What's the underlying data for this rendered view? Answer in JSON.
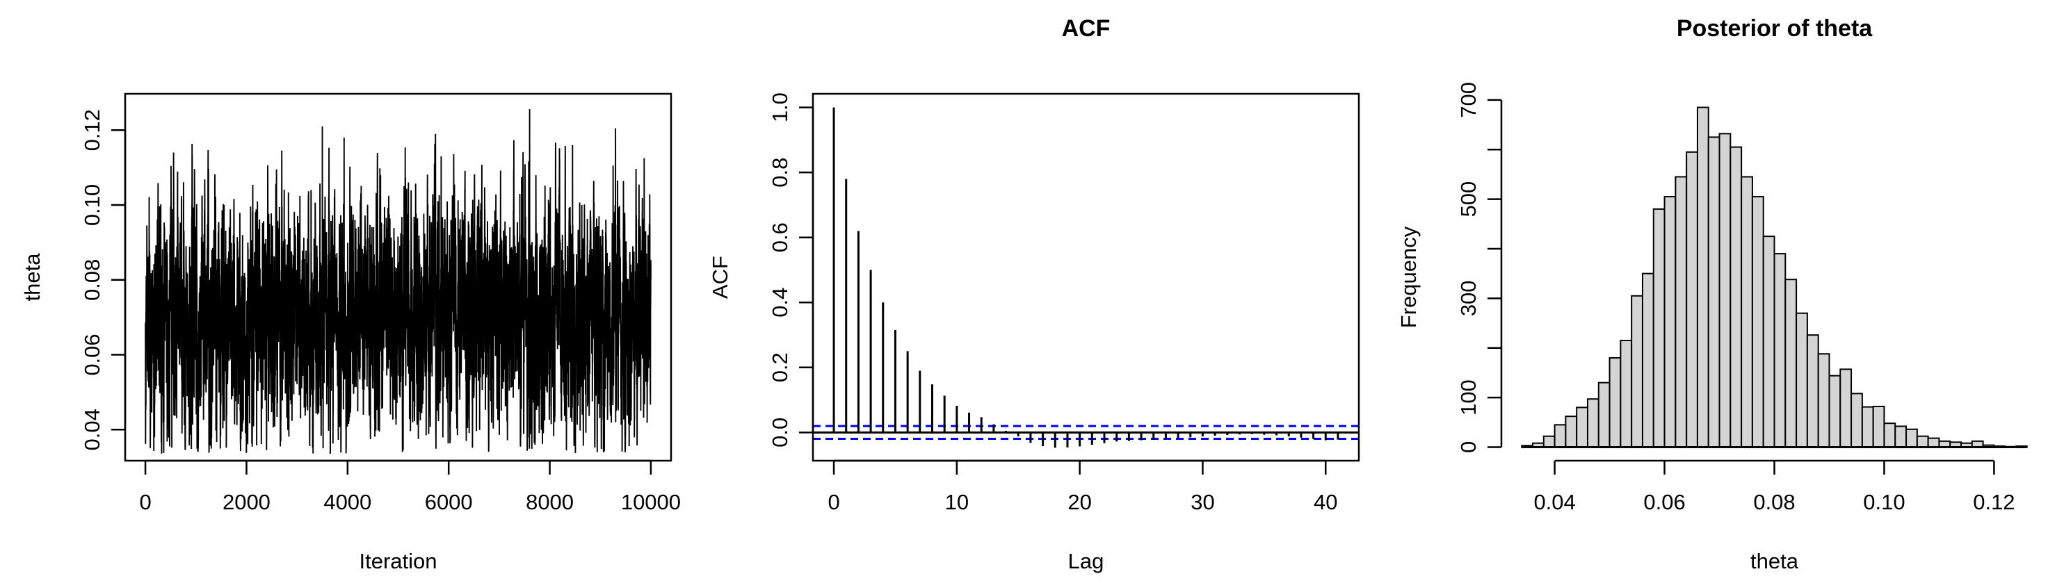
{
  "figure": {
    "background": "#ffffff",
    "foreground": "#000000",
    "accent_blue": "#0000ff",
    "hist_fill": "#d4d4d4"
  },
  "chart_data": [
    {
      "id": "trace",
      "type": "line",
      "title": "",
      "xlabel": "Iteration",
      "ylabel": "theta",
      "xlim": [
        -400,
        10400
      ],
      "ylim": [
        0.0317,
        0.1297
      ],
      "xticks": [
        0,
        2000,
        4000,
        6000,
        8000,
        10000
      ],
      "xtick_labels": [
        "0",
        "2000",
        "4000",
        "6000",
        "8000",
        "10000"
      ],
      "yticks": [
        0.04,
        0.06,
        0.08,
        0.1,
        0.12
      ],
      "ytick_labels": [
        "0.04",
        "0.06",
        "0.08",
        "0.10",
        "0.12"
      ],
      "line_color": "#000000",
      "grid": false,
      "series_summary": {
        "n_iterations": 10000,
        "mean": 0.0705,
        "sd": 0.0145,
        "lag1_autocorr": 0.78,
        "observed_min": 0.035,
        "observed_max": 0.126
      }
    },
    {
      "id": "acf",
      "type": "bar",
      "title": "ACF",
      "xlabel": "Lag",
      "ylabel": "ACF",
      "xlim": [
        -1.7,
        42.7
      ],
      "ylim": [
        -0.087,
        1.042
      ],
      "xticks": [
        0,
        10,
        20,
        30,
        40
      ],
      "xtick_labels": [
        "0",
        "10",
        "20",
        "30",
        "40"
      ],
      "yticks": [
        0.0,
        0.2,
        0.4,
        0.6,
        0.8,
        1.0
      ],
      "ytick_labels": [
        "0.0",
        "0.2",
        "0.4",
        "0.6",
        "0.8",
        "1.0"
      ],
      "grid": false,
      "lags": [
        0,
        1,
        2,
        3,
        4,
        5,
        6,
        7,
        8,
        9,
        10,
        11,
        12,
        13,
        14,
        15,
        16,
        17,
        18,
        19,
        20,
        21,
        22,
        23,
        24,
        25,
        26,
        27,
        28,
        29,
        30,
        31,
        32,
        33,
        34,
        35,
        36,
        37,
        38,
        39,
        40,
        41
      ],
      "values": [
        1.0,
        0.78,
        0.62,
        0.5,
        0.4,
        0.315,
        0.25,
        0.19,
        0.148,
        0.113,
        0.082,
        0.061,
        0.047,
        0.025,
        0.005,
        -0.012,
        -0.032,
        -0.042,
        -0.047,
        -0.046,
        -0.043,
        -0.038,
        -0.033,
        -0.028,
        -0.026,
        -0.024,
        -0.022,
        -0.02,
        -0.017,
        -0.015,
        -0.012,
        -0.01,
        -0.008,
        -0.006,
        -0.005,
        -0.007,
        -0.009,
        -0.012,
        -0.016,
        -0.02,
        -0.024,
        -0.022
      ],
      "conf_band": 0.0196,
      "conf_line_color": "#0000ff",
      "conf_line_style": "dashed",
      "zero_line": true,
      "spike_color": "#000000"
    },
    {
      "id": "posterior-hist",
      "type": "bar",
      "title": "Posterior of theta",
      "xlabel": "theta",
      "ylabel": "Frequency",
      "xlim": [
        0.0303,
        0.1297
      ],
      "ylim": [
        -27.4,
        712.4
      ],
      "bin_start": 0.034,
      "bin_width": 0.002,
      "counts": [
        3,
        8,
        22,
        45,
        62,
        80,
        97,
        130,
        180,
        215,
        305,
        350,
        480,
        505,
        545,
        595,
        685,
        625,
        632,
        605,
        545,
        505,
        425,
        390,
        338,
        270,
        226,
        188,
        144,
        157,
        108,
        81,
        82,
        48,
        42,
        36,
        22,
        18,
        12,
        10,
        8,
        12,
        4,
        2,
        1,
        2
      ],
      "xticks": [
        0.04,
        0.06,
        0.08,
        0.1,
        0.12
      ],
      "xtick_labels": [
        "0.04",
        "0.06",
        "0.08",
        "0.10",
        "0.12"
      ],
      "ytick_positions": [
        0,
        100,
        200,
        300,
        400,
        500,
        600,
        700
      ],
      "ytick_labeled_values": [
        0,
        100,
        300,
        500,
        700
      ],
      "ytick_labels": [
        "0",
        "100",
        "300",
        "500",
        "700"
      ],
      "grid": false,
      "bar_fill": "#d4d4d4",
      "bar_stroke": "#000000"
    }
  ]
}
